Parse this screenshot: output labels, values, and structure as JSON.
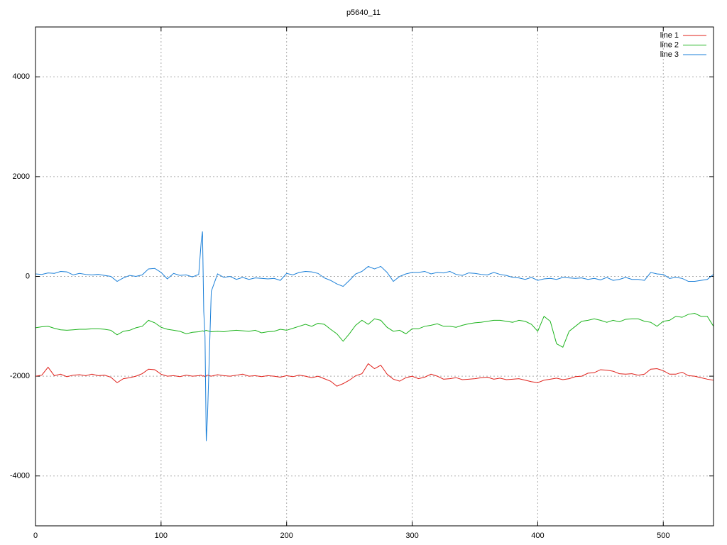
{
  "chart_data": {
    "type": "line",
    "title": "p5640_11",
    "x": [
      0,
      5,
      10,
      15,
      20,
      25,
      30,
      35,
      40,
      45,
      50,
      55,
      60,
      65,
      70,
      75,
      80,
      85,
      90,
      95,
      100,
      105,
      110,
      115,
      120,
      125,
      130,
      132,
      133,
      134,
      135,
      136,
      137,
      140,
      145,
      150,
      155,
      160,
      165,
      170,
      175,
      180,
      185,
      190,
      195,
      200,
      205,
      210,
      215,
      220,
      225,
      230,
      235,
      240,
      245,
      250,
      255,
      260,
      265,
      270,
      275,
      280,
      285,
      290,
      295,
      300,
      305,
      310,
      315,
      320,
      325,
      330,
      335,
      340,
      345,
      350,
      355,
      360,
      365,
      370,
      375,
      380,
      385,
      390,
      395,
      400,
      405,
      410,
      415,
      420,
      425,
      430,
      435,
      440,
      445,
      450,
      455,
      460,
      465,
      470,
      475,
      480,
      485,
      490,
      495,
      500,
      505,
      510,
      515,
      520,
      525,
      530,
      535,
      540
    ],
    "series": [
      {
        "name": "line 1",
        "color": "#e0201a",
        "values": [
          -2000,
          -1980,
          -1820,
          -1990,
          -1960,
          -2010,
          -1980,
          -1970,
          -1990,
          -1960,
          -1990,
          -1980,
          -2020,
          -2130,
          -2050,
          -2030,
          -2000,
          -1950,
          -1860,
          -1870,
          -1960,
          -2000,
          -1990,
          -2010,
          -1980,
          -2000,
          -1990,
          -1980,
          -2000,
          -1990,
          -2010,
          -1990,
          -1980,
          -2000,
          -1970,
          -1990,
          -2000,
          -1980,
          -1960,
          -2000,
          -1990,
          -2010,
          -1990,
          -2000,
          -2020,
          -1990,
          -2010,
          -1980,
          -2000,
          -2030,
          -2000,
          -2050,
          -2100,
          -2200,
          -2150,
          -2080,
          -1990,
          -1950,
          -1750,
          -1850,
          -1780,
          -1960,
          -2060,
          -2100,
          -2030,
          -2000,
          -2050,
          -2020,
          -1960,
          -2000,
          -2060,
          -2050,
          -2030,
          -2070,
          -2060,
          -2050,
          -2030,
          -2020,
          -2060,
          -2040,
          -2070,
          -2060,
          -2050,
          -2080,
          -2110,
          -2130,
          -2080,
          -2060,
          -2040,
          -2070,
          -2050,
          -2010,
          -2000,
          -1940,
          -1930,
          -1870,
          -1880,
          -1900,
          -1950,
          -1960,
          -1950,
          -1980,
          -1960,
          -1860,
          -1850,
          -1890,
          -1960,
          -1960,
          -1920,
          -1990,
          -2000,
          -2030,
          -2060,
          -2080
        ]
      },
      {
        "name": "line 2",
        "color": "#1eb41e",
        "values": [
          -1030,
          -1010,
          -1000,
          -1040,
          -1070,
          -1080,
          -1070,
          -1060,
          -1060,
          -1050,
          -1050,
          -1060,
          -1080,
          -1170,
          -1100,
          -1080,
          -1030,
          -1000,
          -880,
          -930,
          -1020,
          -1060,
          -1080,
          -1100,
          -1150,
          -1120,
          -1110,
          -1100,
          -1090,
          -1100,
          -1090,
          -1080,
          -1090,
          -1110,
          -1100,
          -1110,
          -1090,
          -1080,
          -1090,
          -1100,
          -1080,
          -1130,
          -1110,
          -1100,
          -1060,
          -1080,
          -1040,
          -1000,
          -960,
          -1000,
          -940,
          -960,
          -1060,
          -1150,
          -1300,
          -1150,
          -980,
          -880,
          -960,
          -850,
          -880,
          -1020,
          -1100,
          -1080,
          -1150,
          -1050,
          -1050,
          -1000,
          -980,
          -950,
          -1000,
          -1000,
          -1020,
          -980,
          -950,
          -930,
          -920,
          -900,
          -880,
          -880,
          -900,
          -920,
          -880,
          -900,
          -960,
          -1100,
          -800,
          -900,
          -1350,
          -1420,
          -1100,
          -1000,
          -900,
          -880,
          -850,
          -880,
          -920,
          -880,
          -910,
          -860,
          -850,
          -850,
          -900,
          -920,
          -1000,
          -900,
          -880,
          -800,
          -820,
          -760,
          -740,
          -800,
          -800,
          -1000
        ]
      },
      {
        "name": "line 3",
        "color": "#1a7fd8",
        "values": [
          50,
          40,
          70,
          60,
          100,
          90,
          30,
          60,
          40,
          30,
          40,
          20,
          0,
          -100,
          -30,
          20,
          0,
          30,
          150,
          160,
          80,
          -50,
          60,
          20,
          30,
          -10,
          40,
          700,
          900,
          -700,
          -1200,
          -3300,
          -2800,
          -300,
          50,
          -20,
          0,
          -60,
          -20,
          -60,
          -30,
          -40,
          -50,
          -40,
          -80,
          60,
          30,
          80,
          100,
          90,
          60,
          -30,
          -80,
          -150,
          -200,
          -80,
          50,
          100,
          200,
          150,
          200,
          80,
          -100,
          0,
          50,
          80,
          80,
          100,
          50,
          80,
          70,
          100,
          40,
          20,
          70,
          60,
          40,
          30,
          80,
          40,
          20,
          -20,
          -30,
          -60,
          -20,
          -80,
          -50,
          -40,
          -60,
          -20,
          -30,
          -40,
          -30,
          -60,
          -40,
          -70,
          -20,
          -80,
          -60,
          -20,
          -60,
          -60,
          -80,
          80,
          50,
          40,
          -40,
          -20,
          -40,
          -100,
          -100,
          -80,
          -60,
          40
        ]
      }
    ],
    "xlim": [
      0,
      540
    ],
    "ylim": [
      -5000,
      5000
    ],
    "xticks": [
      0,
      100,
      200,
      300,
      400,
      500
    ],
    "yticks": [
      -4000,
      -2000,
      0,
      2000,
      4000
    ],
    "grid": true,
    "legend": "top-right"
  }
}
